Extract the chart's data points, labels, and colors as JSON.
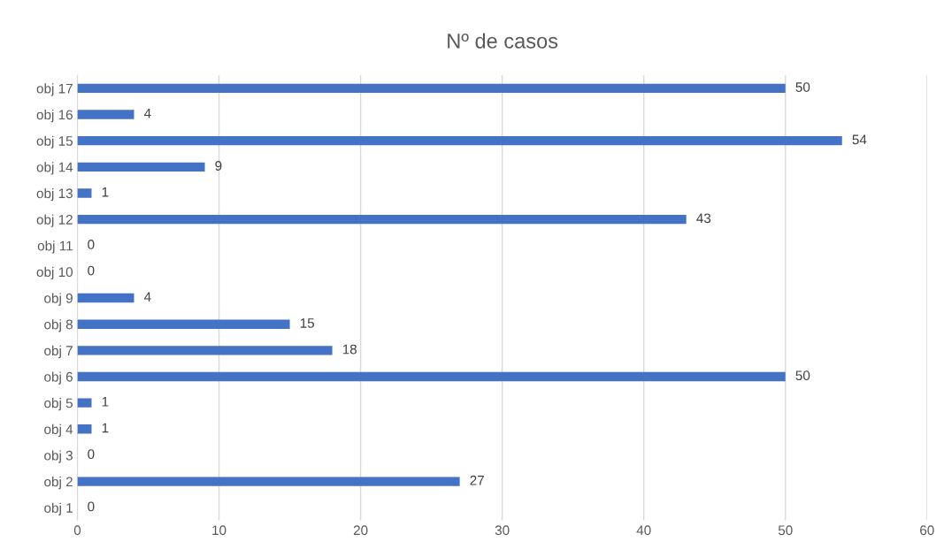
{
  "chart_data": {
    "type": "bar",
    "orientation": "horizontal",
    "title": "Nº de casos",
    "categories": [
      "obj 17",
      "obj 16",
      "obj 15",
      "obj 14",
      "obj 13",
      "obj 12",
      "obj 11",
      "obj 10",
      "obj 9",
      "obj 8",
      "obj 7",
      "obj 6",
      "obj 5",
      "obj 4",
      "obj 3",
      "obj 2",
      "obj 1"
    ],
    "values": [
      50,
      4,
      54,
      9,
      1,
      43,
      0,
      0,
      4,
      15,
      18,
      50,
      1,
      1,
      0,
      27,
      0
    ],
    "color": "#4472c4",
    "xlim": [
      0,
      60
    ],
    "xticks": [
      0,
      10,
      20,
      30,
      40,
      50,
      60
    ],
    "grid": "x",
    "data_labels": true
  }
}
